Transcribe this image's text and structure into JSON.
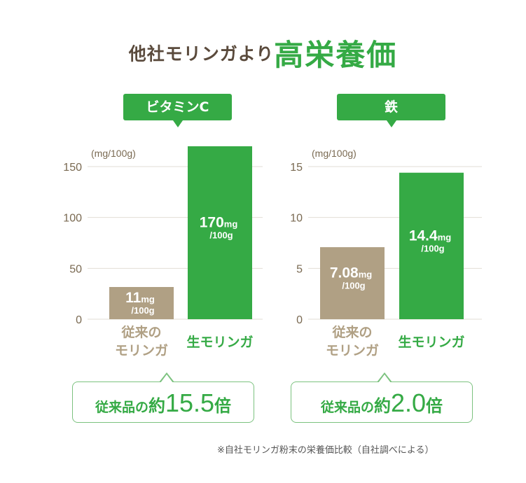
{
  "header": {
    "title_prefix": "他社モリンガより",
    "title_highlight": "高栄養価"
  },
  "colors": {
    "green": "#35aa45",
    "tan": "#b0a084",
    "brown": "#5a4a3c",
    "axis": "#7a6a52"
  },
  "chart_data": [
    {
      "type": "bar",
      "title": "ビタミンC",
      "unit_label": "(mg/100g)",
      "ylim": [
        0,
        150
      ],
      "yticks": [
        0,
        50,
        100,
        150
      ],
      "grid": true,
      "categories": [
        "従来のモリンガ",
        "生モリンガ"
      ],
      "values": [
        11,
        170
      ],
      "data_labels": [
        {
          "num": "11",
          "unit": "mg",
          "per": "/100g"
        },
        {
          "num": "170",
          "unit": "mg",
          "per": "/100g"
        }
      ],
      "comparison": {
        "prefix": "従来品の",
        "approx": "約",
        "value": "15.5",
        "suffix": "倍"
      }
    },
    {
      "type": "bar",
      "title": "鉄",
      "unit_label": "(mg/100g)",
      "ylim": [
        0,
        15
      ],
      "yticks": [
        0,
        5,
        10,
        15
      ],
      "grid": true,
      "categories": [
        "従来のモリンガ",
        "生モリンガ"
      ],
      "values": [
        7.08,
        14.4
      ],
      "data_labels": [
        {
          "num": "7.08",
          "unit": "mg",
          "per": "/100g"
        },
        {
          "num": "14.4",
          "unit": "mg",
          "per": "/100g"
        }
      ],
      "comparison": {
        "prefix": "従来品の",
        "approx": "約",
        "value": "2.0",
        "suffix": "倍"
      }
    }
  ],
  "category_lines": {
    "conventional": [
      "従来の",
      "モリンガ"
    ],
    "raw": "生モリンガ"
  },
  "footnote": "※自社モリンガ粉末の栄養価比較（自社調べによる）"
}
